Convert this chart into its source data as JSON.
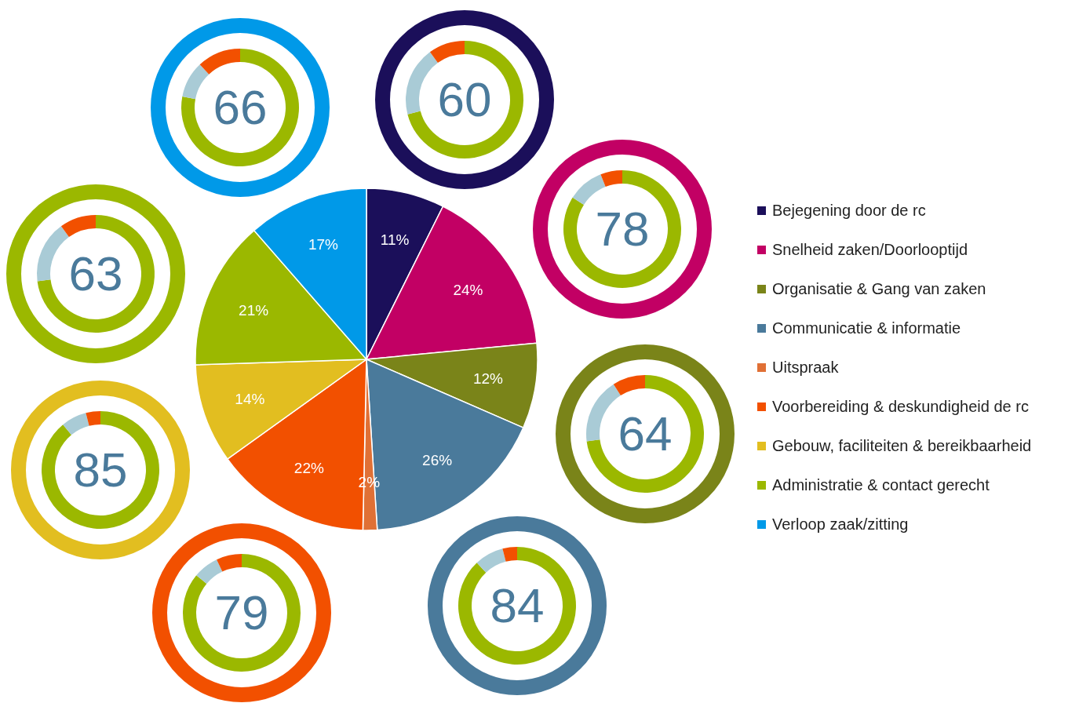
{
  "chart_data": [
    {
      "type": "pie",
      "categories": [
        "Bejegening door de rc",
        "Snelheid zaken/Doorlooptijd",
        "Organisatie & Gang van zaken",
        "Communicatie & informatie",
        "Uitspraak",
        "Voorbereiding & deskundigheid de rc",
        "Gebouw, faciliteiten & bereikbaarheid",
        "Administratie & contact gerecht",
        "Verloop zaak/zitting"
      ],
      "values": [
        11,
        24,
        12,
        26,
        2,
        22,
        14,
        21,
        17
      ],
      "colors": [
        "#1b0f5a",
        "#c20064",
        "#7a8419",
        "#4a7a9b",
        "#e07035",
        "#f25000",
        "#e2be20",
        "#9bb800",
        "#0099e8"
      ],
      "value_labels": [
        "11%",
        "24%",
        "12%",
        "26%",
        "2%",
        "22%",
        "14%",
        "21%",
        "17%"
      ],
      "legend": "right"
    },
    {
      "type": "donut",
      "title": "60",
      "color": "#1b0f5a",
      "categories": [
        null,
        null,
        null
      ],
      "values": [
        71,
        19,
        10
      ],
      "colors": [
        "#9bb800",
        "#a9cbd6",
        "#f25000"
      ]
    },
    {
      "type": "donut",
      "title": "78",
      "color": "#c20064",
      "categories": [
        null,
        null,
        null
      ],
      "values": [
        84,
        10,
        6
      ],
      "colors": [
        "#9bb800",
        "#a9cbd6",
        "#f25000"
      ]
    },
    {
      "type": "donut",
      "title": "64",
      "color": "#7a8419",
      "categories": [
        null,
        null,
        null
      ],
      "values": [
        73,
        18,
        9
      ],
      "colors": [
        "#9bb800",
        "#a9cbd6",
        "#f25000"
      ]
    },
    {
      "type": "donut",
      "title": "84",
      "color": "#4a7a9b",
      "categories": [
        null,
        null,
        null
      ],
      "values": [
        88,
        8,
        4
      ],
      "colors": [
        "#9bb800",
        "#a9cbd6",
        "#f25000"
      ]
    },
    {
      "type": "donut",
      "title": "79",
      "color": "#f25000",
      "categories": [
        null,
        null,
        null
      ],
      "values": [
        86,
        7,
        7
      ],
      "colors": [
        "#9bb800",
        "#a9cbd6",
        "#f25000"
      ]
    },
    {
      "type": "donut",
      "title": "85",
      "color": "#e2be20",
      "categories": [
        null,
        null,
        null
      ],
      "values": [
        89,
        7,
        4
      ],
      "colors": [
        "#9bb800",
        "#a9cbd6",
        "#f25000"
      ]
    },
    {
      "type": "donut",
      "title": "63",
      "color": "#9bb800",
      "categories": [
        null,
        null,
        null
      ],
      "values": [
        73,
        17,
        10
      ],
      "colors": [
        "#9bb800",
        "#a9cbd6",
        "#f25000"
      ]
    },
    {
      "type": "donut",
      "title": "66",
      "color": "#0099e8",
      "categories": [
        null,
        null,
        null
      ],
      "values": [
        78,
        10,
        12
      ],
      "colors": [
        "#9bb800",
        "#a9cbd6",
        "#f25000"
      ]
    }
  ]
}
